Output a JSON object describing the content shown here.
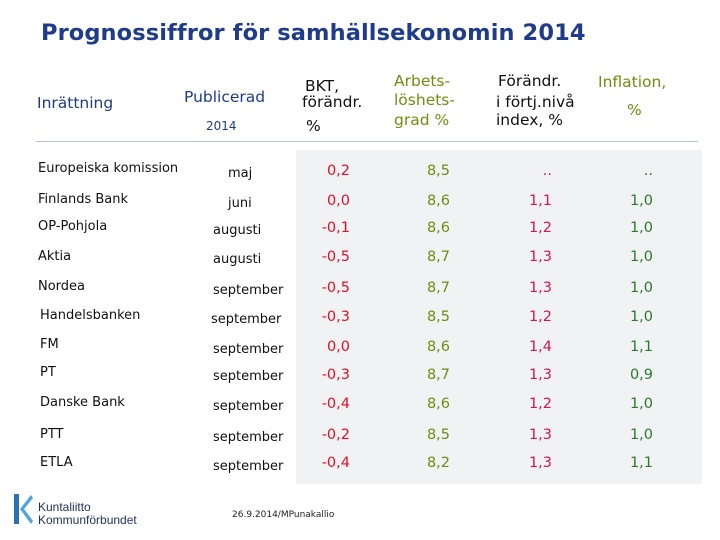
{
  "title": "Prognossiffror för samhällsekonomin 2014",
  "headers": {
    "institution": "Inrättning",
    "published": "Publicerad",
    "published_year": "2014",
    "gdp_line1": "BKT,",
    "gdp_line2": "förändr.",
    "gdp_line3": "%",
    "unemp_line1": "Arbets-",
    "unemp_line2": "löshets-",
    "unemp_line3": "grad %",
    "price_line1": "Förändr.",
    "price_line2": "i förtj.nivå",
    "price_line3": "index, %",
    "infl_line1": "Inflation,",
    "infl_line2": "%"
  },
  "rows": [
    {
      "org": "Europeiska komission",
      "pub": "maj",
      "gdp": "0,2",
      "unemp": "8,5",
      "wage": "..",
      "infl": ".."
    },
    {
      "org": "Finlands Bank",
      "pub": "juni",
      "gdp": "0,0",
      "unemp": "8,6",
      "wage": "1,1",
      "infl": "1,0"
    },
    {
      "org": "OP-Pohjola",
      "pub": "augusti",
      "gdp": "-0,1",
      "unemp": "8,6",
      "wage": "1,2",
      "infl": "1,0"
    },
    {
      "org": "Aktia",
      "pub": "augusti",
      "gdp": "-0,5",
      "unemp": "8,7",
      "wage": "1,3",
      "infl": "1,0"
    },
    {
      "org": "Nordea",
      "pub": "september",
      "gdp": "-0,5",
      "unemp": "8,7",
      "wage": "1,3",
      "infl": "1,0"
    },
    {
      "org": "Handelsbanken",
      "pub": "september",
      "gdp": "-0,3",
      "unemp": "8,5",
      "wage": "1,2",
      "infl": "1,0"
    },
    {
      "org": "FM",
      "pub": "september",
      "gdp": "0,0",
      "unemp": "8,6",
      "wage": "1,4",
      "infl": "1,1"
    },
    {
      "org": "PT",
      "pub": "september",
      "gdp": "-0,3",
      "unemp": "8,7",
      "wage": "1,3",
      "infl": "0,9"
    },
    {
      "org": "Danske Bank",
      "pub": "september",
      "gdp": "-0,4",
      "unemp": "8,6",
      "wage": "1,2",
      "infl": "1,0"
    },
    {
      "org": "PTT",
      "pub": "september",
      "gdp": "-0,2",
      "unemp": "8,5",
      "wage": "1,3",
      "infl": "1,0"
    },
    {
      "org": "ETLA",
      "pub": "september",
      "gdp": "-0,4",
      "unemp": "8,2",
      "wage": "1,3",
      "infl": "1,1"
    }
  ],
  "footer": "26.9.2014/MPunakallio",
  "logo": {
    "line1": "Kuntaliitto",
    "line2": "Kommunförbundet"
  },
  "colors": {
    "title": "#1f3b8c",
    "gdp": "#e0102a",
    "unemployment": "#6e8f0e",
    "wage": "#d4145a",
    "inflation": "#2a7a2a"
  }
}
